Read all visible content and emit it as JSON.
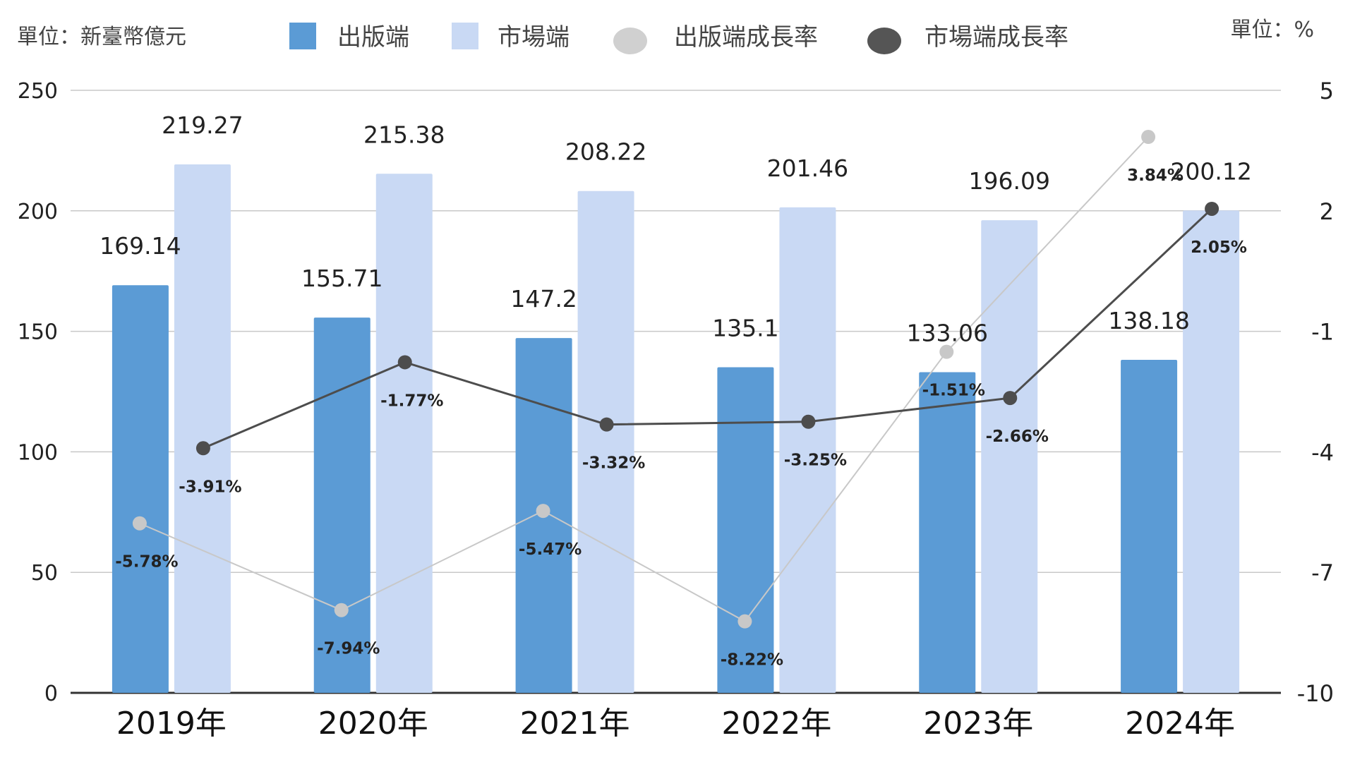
{
  "header": {
    "unit_left": "單位：新臺幣億元",
    "unit_right": "單位：%"
  },
  "legend": [
    {
      "label": "出版端",
      "kind": "bar",
      "color": "#5b9bd5"
    },
    {
      "label": "市場端",
      "kind": "bar",
      "color": "#c9d9f4"
    },
    {
      "label": "出版端成長率",
      "kind": "dot",
      "color": "#d0d0d0"
    },
    {
      "label": "市場端成長率",
      "kind": "dot",
      "color": "#555555"
    }
  ],
  "chart_data": {
    "type": "bar",
    "categories": [
      "2019年",
      "2020年",
      "2021年",
      "2022年",
      "2023年",
      "2024年"
    ],
    "series": [
      {
        "name": "出版端",
        "type": "bar",
        "axis": "left",
        "color": "#5b9bd5",
        "values": [
          169.14,
          155.71,
          147.2,
          135.1,
          133.06,
          138.18
        ],
        "labels": [
          "169.14",
          "155.71",
          "147.2",
          "135.1",
          "133.06",
          "138.18"
        ]
      },
      {
        "name": "市場端",
        "type": "bar",
        "axis": "left",
        "color": "#c9d9f4",
        "values": [
          219.27,
          215.38,
          208.22,
          201.46,
          196.09,
          200.12
        ],
        "labels": [
          "219.27",
          "215.38",
          "208.22",
          "201.46",
          "196.09",
          "200.12"
        ]
      },
      {
        "name": "出版端成長率",
        "type": "line",
        "axis": "right",
        "color": "#c8c8c8",
        "values": [
          -5.78,
          -7.94,
          -5.47,
          -8.22,
          -1.51,
          3.84
        ],
        "labels": [
          "-5.78%",
          "-7.94%",
          "-5.47%",
          "-8.22%",
          "-1.51%",
          "3.84%"
        ]
      },
      {
        "name": "市場端成長率",
        "type": "line",
        "axis": "right",
        "color": "#4d4d4d",
        "values": [
          -3.91,
          -1.77,
          -3.32,
          -3.25,
          -2.66,
          2.05
        ],
        "labels": [
          "-3.91%",
          "-1.77%",
          "-3.32%",
          "-3.25%",
          "-2.66%",
          "2.05%"
        ]
      }
    ],
    "y_left": {
      "min": 0,
      "max": 250,
      "ticks": [
        "0",
        "50",
        "100",
        "150",
        "200",
        "250"
      ]
    },
    "y_right": {
      "min": -10,
      "max": 5,
      "ticks": [
        "-10",
        "-7",
        "-4",
        "-1",
        "2",
        "5"
      ]
    },
    "grid": true,
    "legend_position": "top"
  }
}
